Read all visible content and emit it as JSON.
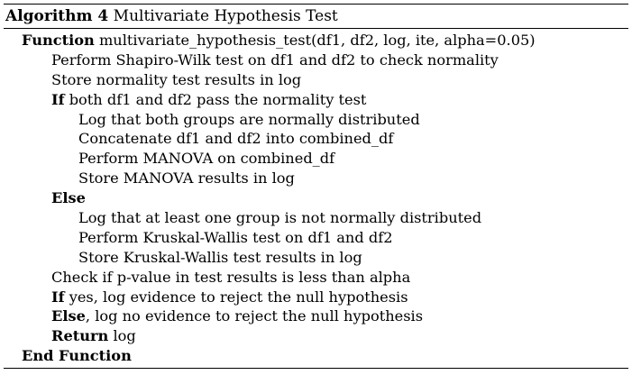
{
  "algorithm": {
    "label": "Algorithm 4",
    "title": "Multivariate Hypothesis Test"
  },
  "lines": {
    "l01": {
      "kw": "Function",
      "text": " multivariate_hypothesis_test(df1, df2, log, ite, alpha=0.05)"
    },
    "l02": {
      "text": "Perform Shapiro-Wilk test on df1 and df2 to check normality"
    },
    "l03": {
      "text": "Store normality test results in log"
    },
    "l04": {
      "kw": "If",
      "text": " both df1 and df2 pass the normality test"
    },
    "l05": {
      "text": "Log that both groups are normally distributed"
    },
    "l06": {
      "text": "Concatenate df1 and df2 into combined_df"
    },
    "l07": {
      "text": "Perform MANOVA on combined_df"
    },
    "l08": {
      "text": "Store MANOVA results in log"
    },
    "l09": {
      "kw": "Else"
    },
    "l10": {
      "text": "Log that at least one group is not normally distributed"
    },
    "l11": {
      "text": "Perform Kruskal-Wallis test on df1 and df2"
    },
    "l12": {
      "text": "Store Kruskal-Wallis test results in log"
    },
    "l13": {
      "text": "Check if p-value in test results is less than alpha"
    },
    "l14": {
      "kw": "If",
      "text": " yes, log evidence to reject the null hypothesis"
    },
    "l15": {
      "kw": "Else",
      "text": ", log no evidence to reject the null hypothesis"
    },
    "l16": {
      "kw": "Return",
      "text": " log"
    },
    "l17": {
      "kw": "End Function"
    }
  }
}
